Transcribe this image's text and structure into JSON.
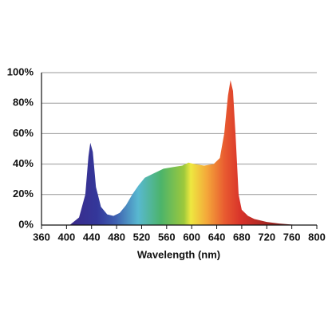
{
  "chart_data": {
    "type": "area",
    "x_label": "Wavelength (nm)",
    "x": [
      405,
      420,
      430,
      435,
      438,
      442,
      447,
      455,
      465,
      475,
      485,
      495,
      505,
      515,
      525,
      540,
      555,
      570,
      585,
      595,
      605,
      620,
      635,
      645,
      652,
      658,
      662,
      666,
      670,
      675,
      680,
      690,
      700,
      720,
      740,
      770
    ],
    "values": [
      0,
      5,
      20,
      45,
      54,
      48,
      25,
      12,
      7,
      6,
      8,
      13,
      20,
      26,
      31,
      34,
      37,
      38,
      39,
      41,
      40,
      39,
      40,
      44,
      60,
      85,
      95,
      88,
      60,
      20,
      10,
      6,
      4,
      2,
      1,
      0
    ],
    "xlim": [
      360,
      800
    ],
    "xticks": [
      360,
      400,
      440,
      480,
      520,
      560,
      600,
      640,
      680,
      720,
      760,
      800
    ],
    "ylim": [
      0,
      100
    ],
    "yticks": [
      {
        "value": 0,
        "label": "0%"
      },
      {
        "value": 20,
        "label": "20%"
      },
      {
        "value": 40,
        "label": "40%"
      },
      {
        "value": 60,
        "label": "60%"
      },
      {
        "value": 80,
        "label": "80%"
      },
      {
        "value": 100,
        "label": "100%"
      }
    ],
    "grid": true
  }
}
